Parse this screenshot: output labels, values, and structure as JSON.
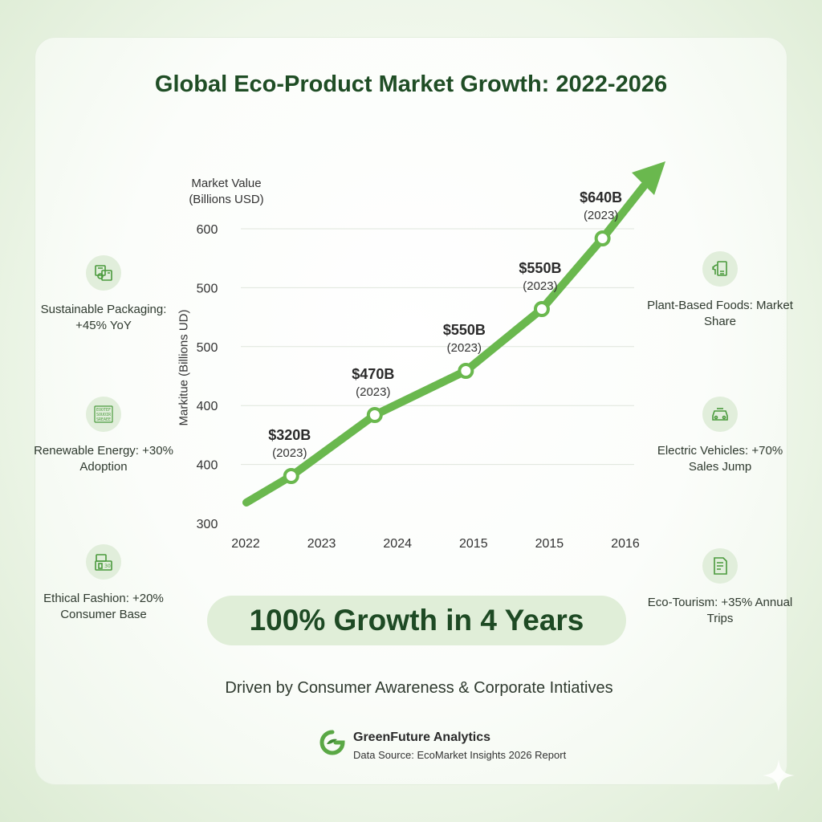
{
  "title": "Global Eco-Product Market Growth: 2022-2026",
  "axis_top_label": "Market Value (Billions USD)",
  "axis_side_label": "Markitue (Billions UD)",
  "chart_data": {
    "type": "line",
    "title": "Global Eco-Product Market Growth: 2022-2026",
    "ylabel": "Market Value (Billions USD)",
    "y_tick_labels": [
      "600",
      "500",
      "500",
      "400",
      "400",
      "300"
    ],
    "x_tick_labels": [
      "2022",
      "2023",
      "2024",
      "2015",
      "2015",
      "2016"
    ],
    "grid": true,
    "series": [
      {
        "x": [
          2022.6,
          2023.7,
          2024.9,
          2025.9,
          2026.7
        ],
        "values": [
          320,
          470,
          550,
          550,
          640
        ],
        "data_labels": [
          {
            "value": "$320B",
            "sub": "(2023)"
          },
          {
            "value": "$470B",
            "sub": "(2023)"
          },
          {
            "value": "$550B",
            "sub": "(2023)"
          },
          {
            "value": "$550B",
            "sub": "(2023)"
          },
          {
            "value": "$640B",
            "sub": "(2023)"
          }
        ]
      }
    ],
    "line_color": "#6ab84e"
  },
  "side_items": {
    "packaging": "Sustainable Packaging: +45% YoY",
    "energy": "Renewable Energy: +30% Adoption",
    "fashion": "Ethical Fashion: +20% Consumer Base",
    "foods": "Plant-Based Foods: Market Share",
    "vehicles": "Electric Vehicles: +70% Sales Jump",
    "tourism": "Eco-Tourism: +35% Annual Trips"
  },
  "icons": {
    "packaging": "packaging-icon",
    "energy": "energy-icon",
    "fashion": "fashion-icon",
    "foods": "plant-food-icon",
    "vehicles": "car-icon",
    "tourism": "document-icon"
  },
  "energy_icon_text": [
    "EOOTEF",
    "SOUOIR",
    "SREAEE"
  ],
  "fashion_icon_text": "30",
  "banner": "100% Growth in 4 Years",
  "driven": "Driven by Consumer Awareness & Corporate Intiatives",
  "brand": {
    "name": "GreenFuture Analytics",
    "source": "Data Source: EcoMarket Insights 2026 Report"
  },
  "colors": {
    "accent": "#6ab84e",
    "title": "#1f4d25",
    "banner_bg": "#e0eed8"
  }
}
